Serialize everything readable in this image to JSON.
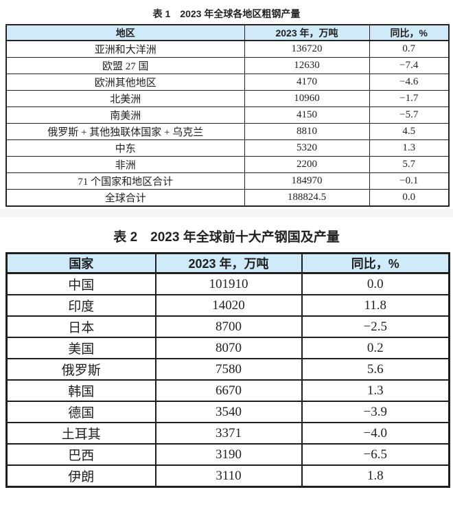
{
  "colors": {
    "header_bg": "#cfeaf8",
    "border": "#222222",
    "separator_band": "#f5f5f5",
    "text": "#1f1f1f"
  },
  "table1": {
    "title": "表 1　2023 年全球各地区粗钢产量",
    "columns": [
      "地区",
      "2023 年，万吨",
      "同比，%"
    ],
    "rows": [
      [
        "亚洲和大洋洲",
        "136720",
        "0.7"
      ],
      [
        "欧盟 27 国",
        "12630",
        "−7.4"
      ],
      [
        "欧洲其他地区",
        "4170",
        "−4.6"
      ],
      [
        "北美洲",
        "10960",
        "−1.7"
      ],
      [
        "南美洲",
        "4150",
        "−5.7"
      ],
      [
        "俄罗斯 + 其他独联体国家 + 乌克兰",
        "8810",
        "4.5"
      ],
      [
        "中东",
        "5320",
        "1.3"
      ],
      [
        "非洲",
        "2200",
        "5.7"
      ],
      [
        "71 个国家和地区合计",
        "184970",
        "−0.1"
      ],
      [
        "全球合计",
        "188824.5",
        "0.0"
      ]
    ]
  },
  "table2": {
    "title": "表 2　2023 年全球前十大产钢国及产量",
    "columns": [
      "国家",
      "2023 年，万吨",
      "同比，%"
    ],
    "rows": [
      [
        "中国",
        "101910",
        "0.0"
      ],
      [
        "印度",
        "14020",
        "11.8"
      ],
      [
        "日本",
        "8700",
        "−2.5"
      ],
      [
        "美国",
        "8070",
        "0.2"
      ],
      [
        "俄罗斯",
        "7580",
        "5.6"
      ],
      [
        "韩国",
        "6670",
        "1.3"
      ],
      [
        "德国",
        "3540",
        "−3.9"
      ],
      [
        "土耳其",
        "3371",
        "−4.0"
      ],
      [
        "巴西",
        "3190",
        "−6.5"
      ],
      [
        "伊朗",
        "3110",
        "1.8"
      ]
    ]
  }
}
